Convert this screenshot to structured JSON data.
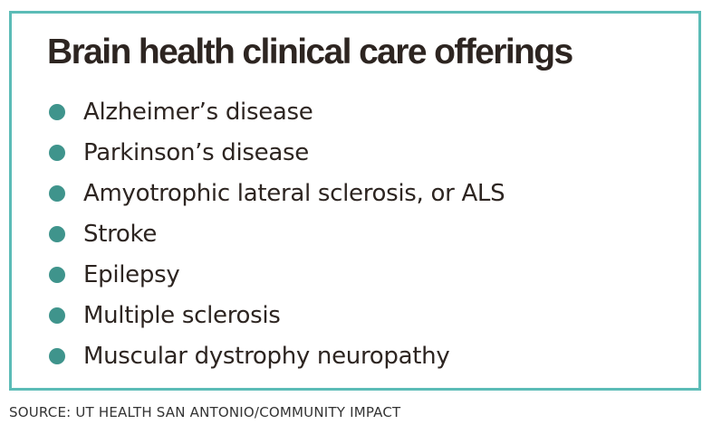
{
  "title": "Brain health clinical care offerings",
  "items": [
    "Alzheimer’s disease",
    "Parkinson’s disease",
    "Amyotrophic lateral sclerosis, or ALS",
    "Stroke",
    "Epilepsy",
    "Multiple sclerosis",
    "Muscular dystrophy neuropathy"
  ],
  "source": "SOURCE: UT HEALTH SAN ANTONIO/COMMUNITY IMPACT",
  "colors": {
    "border": "#5cbcb7",
    "bullet": "#3f948c",
    "text": "#2d2521"
  }
}
